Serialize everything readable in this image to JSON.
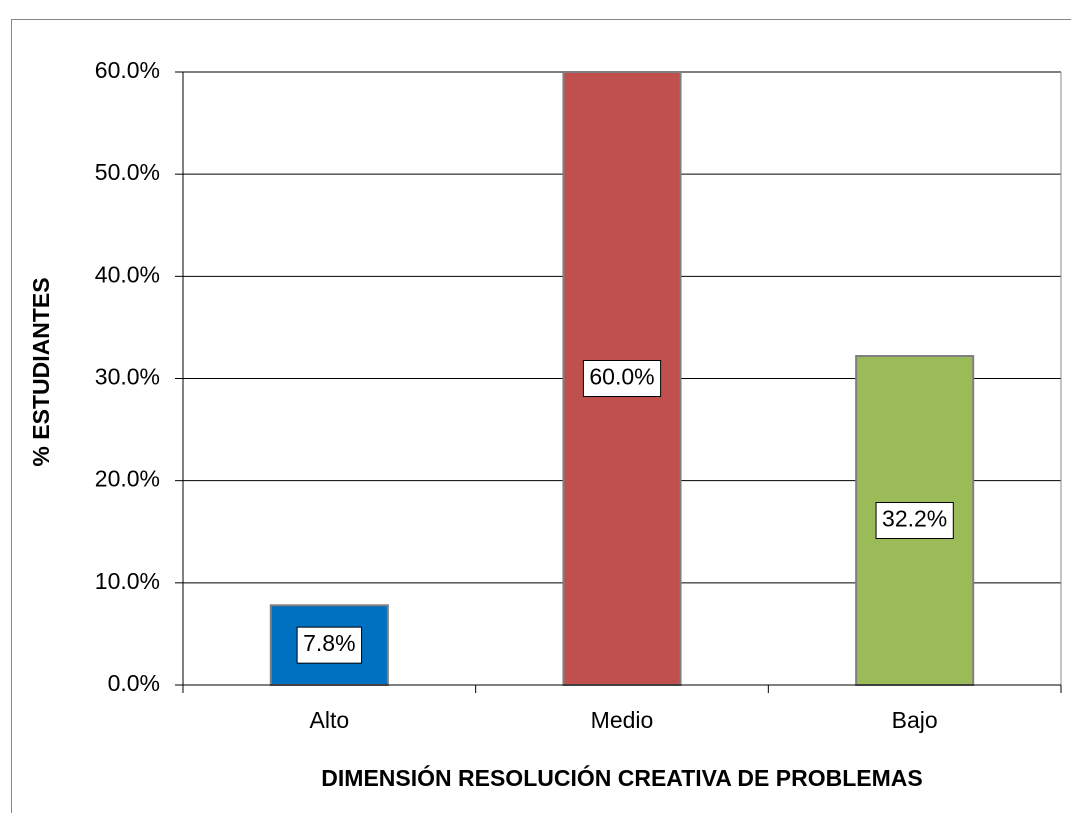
{
  "chart_data": {
    "type": "bar",
    "categories": [
      "Alto",
      "Medio",
      "Bajo"
    ],
    "values": [
      7.8,
      60.0,
      32.2
    ],
    "value_labels": [
      "7.8%",
      "60.0%",
      "32.2%"
    ],
    "colors": [
      "#0070c0",
      "#c0504d",
      "#9bbb59"
    ],
    "xlabel": "DIMENSIÓN RESOLUCIÓN CREATIVA DE PROBLEMAS",
    "ylabel": "% ESTUDIANTES",
    "ylim": [
      0,
      60
    ],
    "yticks": [
      {
        "value": 0,
        "label": "0.0%"
      },
      {
        "value": 10,
        "label": "10.0%"
      },
      {
        "value": 20,
        "label": "20.0%"
      },
      {
        "value": 30,
        "label": "30.0%"
      },
      {
        "value": 40,
        "label": "40.0%"
      },
      {
        "value": 50,
        "label": "50.0%"
      },
      {
        "value": 60,
        "label": "60.0%"
      }
    ],
    "grid": true
  }
}
